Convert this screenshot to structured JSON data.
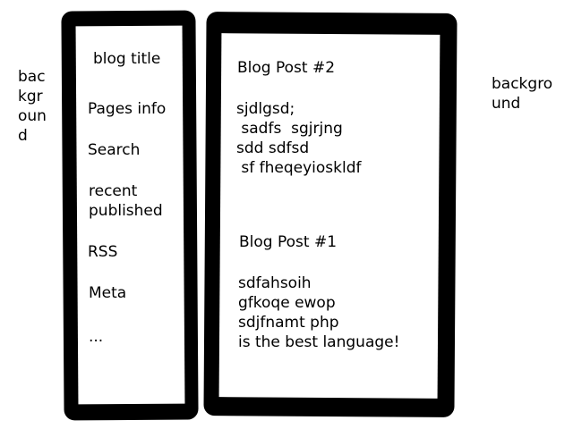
{
  "background_left": "bac\nkgr\noun\nd",
  "background_right": "backgro\nund",
  "sidebar": {
    "title": "blog title",
    "items": [
      "Pages info",
      "Search",
      "recent\npublished",
      "RSS",
      "Meta",
      "..."
    ]
  },
  "posts": [
    {
      "title": "Blog Post #2",
      "body": "sjdlgsd;\n sadfs  sgjrjng\nsdd sdfsd\n sf fheqeyioskldf"
    },
    {
      "title": "Blog Post #1",
      "body": "sdfahsoih\ngfkoqe ewop\nsdjfnamt php\nis the best language!"
    }
  ],
  "colors": {
    "ink": "#000000",
    "paper": "#ffffff"
  }
}
